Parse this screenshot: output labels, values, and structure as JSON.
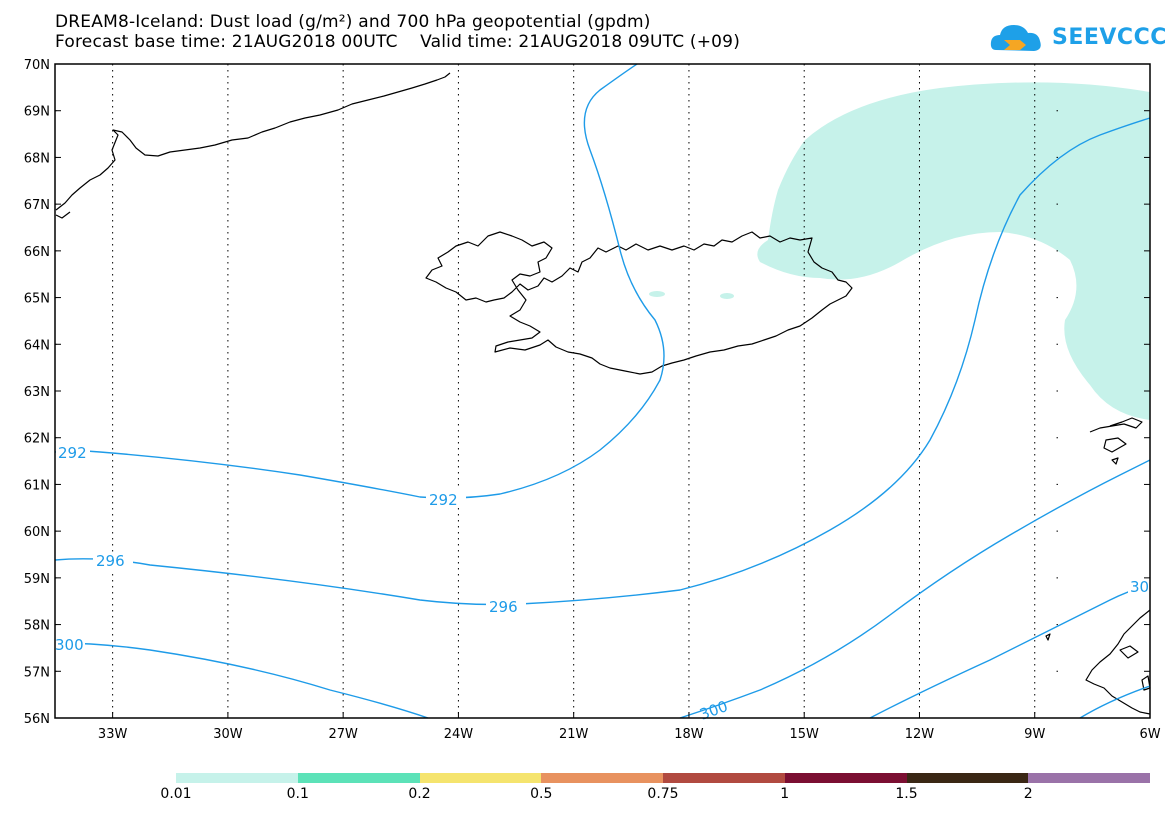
{
  "header": {
    "title_line1": "DREAM8-Iceland: Dust load (g/m²) and 700 hPa geopotential (gpdm)",
    "title_line2": "Forecast base time: 21AUG2018 00UTC    Valid time: 21AUG2018 09UTC (+09)"
  },
  "logo": {
    "text": "SEEVCCC",
    "icon": "cloud-logo-icon",
    "color": "#1ea0e8"
  },
  "map": {
    "lon_range": [
      -34.5,
      -6
    ],
    "lat_range": [
      56,
      70
    ],
    "grid": true,
    "lat_labels": [
      "70N",
      "69N",
      "68N",
      "67N",
      "66N",
      "65N",
      "64N",
      "63N",
      "62N",
      "61N",
      "60N",
      "59N",
      "58N",
      "57N",
      "56N"
    ],
    "lon_labels": [
      "33W",
      "30W",
      "27W",
      "24W",
      "21W",
      "18W",
      "15W",
      "12W",
      "9W",
      "6W"
    ],
    "contour_labels": [
      {
        "text": "292",
        "id": "292-west"
      },
      {
        "text": "292",
        "id": "292-mid"
      },
      {
        "text": "296",
        "id": "296-west"
      },
      {
        "text": "296",
        "id": "296-mid"
      },
      {
        "text": "300",
        "id": "300-west"
      },
      {
        "text": "300",
        "id": "300-south"
      },
      {
        "text": "30",
        "id": "300-east"
      }
    ],
    "contour_color": "#1e9be8",
    "coast_color": "#000000"
  },
  "colorbar": {
    "colors": [
      "#c6f2ea",
      "#5ce2b8",
      "#f5e46e",
      "#e8925f",
      "#b14a40",
      "#7b0f32",
      "#3a2714",
      "#9a72a8"
    ],
    "labels": [
      "0.01",
      "0.1",
      "0.2",
      "0.5",
      "0.75",
      "1",
      "1.5",
      "2"
    ]
  }
}
